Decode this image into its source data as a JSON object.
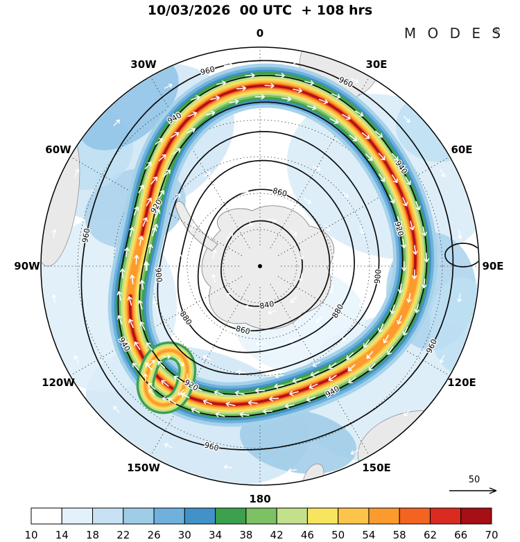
{
  "title": "10/03/2026  00 UTC  + 108 hrs",
  "logo": {
    "text": "M O D E S",
    "registered": "©"
  },
  "map": {
    "longitude_labels": [
      {
        "label": "0",
        "deg": 0
      },
      {
        "label": "30E",
        "deg": 30
      },
      {
        "label": "60E",
        "deg": 60
      },
      {
        "label": "90E",
        "deg": 90
      },
      {
        "label": "120E",
        "deg": 120
      },
      {
        "label": "150E",
        "deg": 150
      },
      {
        "label": "180",
        "deg": 180
      },
      {
        "label": "150W",
        "deg": 210
      },
      {
        "label": "120W",
        "deg": 240
      },
      {
        "label": "90W",
        "deg": 270
      },
      {
        "label": "60W",
        "deg": 300
      },
      {
        "label": "30W",
        "deg": 330
      }
    ],
    "reference_arrow": {
      "label": "50"
    }
  },
  "chart_data": {
    "type": "heatmap",
    "title": "10/03/2026  00 UTC  + 108 hrs",
    "projection": "south-polar",
    "shading": "wind speed filled contours with overlaid wind vectors and height contour lines",
    "colorbar": {
      "orientation": "horizontal",
      "tick_labels": [
        10,
        14,
        18,
        22,
        26,
        30,
        34,
        38,
        42,
        46,
        50,
        54,
        58,
        62,
        66,
        70
      ],
      "colors": [
        "#ffffff",
        "#e3f1fa",
        "#c6e2f3",
        "#9fcde8",
        "#6fb1dc",
        "#4292c9",
        "#3ca04e",
        "#7cc163",
        "#c3e08b",
        "#f7e45f",
        "#fdc44c",
        "#fd9a2e",
        "#f2641f",
        "#d92b20",
        "#a50f15"
      ]
    },
    "contour_lines": {
      "values": [
        840,
        860,
        880,
        900,
        920,
        940,
        960
      ]
    },
    "longitude_ticks": [
      "0",
      "30E",
      "60E",
      "90E",
      "120E",
      "150E",
      "180",
      "150W",
      "120W",
      "90W",
      "60W",
      "30W"
    ],
    "wind_reference_value": 50
  }
}
